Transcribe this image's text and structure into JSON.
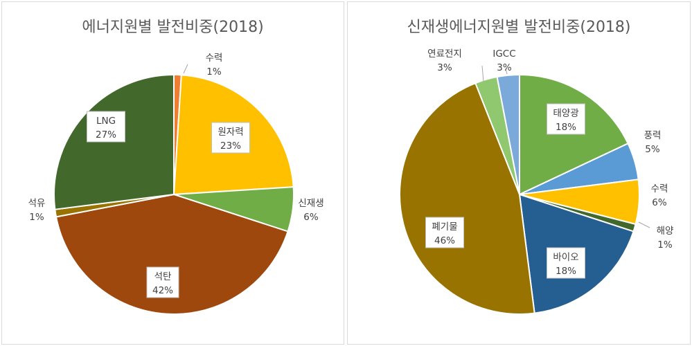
{
  "chart_data": [
    {
      "type": "pie",
      "title": "에너지원별 발전비중(2018)",
      "categories": [
        "수력",
        "원자력",
        "신재생",
        "석탄",
        "석유",
        "LNG"
      ],
      "values": [
        1,
        23,
        6,
        42,
        1,
        27
      ],
      "labels": [
        "1%",
        "23%",
        "6%",
        "42%",
        "1%",
        "27%"
      ],
      "colors": [
        "#ED7D31",
        "#FFC000",
        "#70AD47",
        "#9E480E",
        "#997300",
        "#43682B"
      ]
    },
    {
      "type": "pie",
      "title": "신재생에너지원별 발전비중(2018)",
      "categories": [
        "태양광",
        "풍력",
        "수력",
        "해양",
        "바이오",
        "폐기물",
        "연료전지",
        "IGCC"
      ],
      "values": [
        18,
        5,
        6,
        1,
        18,
        46,
        3,
        3
      ],
      "labels": [
        "18%",
        "5%",
        "6%",
        "1%",
        "18%",
        "46%",
        "3%",
        "3%"
      ],
      "colors": [
        "#70AD47",
        "#5B9BD5",
        "#FFC000",
        "#43682B",
        "#255E91",
        "#997300",
        "#8FC86E",
        "#7AA9DA"
      ]
    }
  ]
}
